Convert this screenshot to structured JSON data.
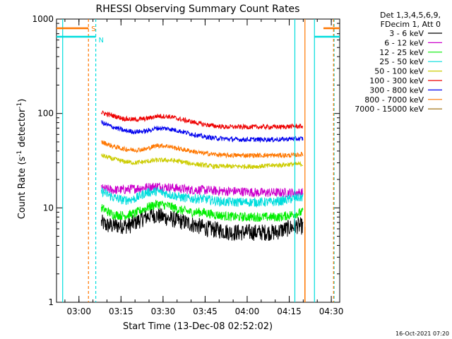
{
  "chart_data": {
    "type": "line",
    "title": "RHESSI Observing Summary Count Rates",
    "xlabel": "Start Time (13-Dec-08 02:52:02)",
    "ylabel_main": "Count Rate (s",
    "ylabel_sup1": "-1",
    "ylabel_mid": " detector",
    "ylabel_sup2": "-1",
    "ylabel_end": ")",
    "y_scale": "log",
    "ylim": [
      1,
      1000
    ],
    "xlim_minutes_after_0252": [
      0,
      101
    ],
    "y_ticks": [
      {
        "label": "1000",
        "value": 1000
      },
      {
        "label": "100",
        "value": 100
      },
      {
        "label": "10",
        "value": 10
      },
      {
        "label": "1",
        "value": 1
      }
    ],
    "x_ticks": [
      {
        "label": "03:00",
        "minutes": 8
      },
      {
        "label": "03:15",
        "minutes": 23
      },
      {
        "label": "03:30",
        "minutes": 38
      },
      {
        "label": "03:45",
        "minutes": 53
      },
      {
        "label": "04:00",
        "minutes": 68
      },
      {
        "label": "04:15",
        "minutes": 83
      },
      {
        "label": "04:30",
        "minutes": 98
      }
    ],
    "legend_header": [
      "Det 1,3,4,5,6,9,",
      "FDecim 1, Att 0"
    ],
    "series": [
      {
        "name": "3 - 6 keV",
        "color": "#000000",
        "x": [
          16,
          18,
          22,
          26,
          30,
          34,
          38,
          42,
          46,
          50,
          54,
          58,
          62,
          66,
          70,
          74,
          78,
          82,
          86,
          88
        ],
        "y": [
          7,
          6.5,
          6.5,
          6.5,
          7.5,
          8.5,
          8,
          7.5,
          7,
          6.5,
          6,
          5.8,
          5.5,
          5.5,
          5.5,
          5.5,
          5.5,
          6,
          6.5,
          6.3
        ]
      },
      {
        "name": "6 - 12 keV",
        "color": "#cc00cc",
        "x": [
          16,
          20,
          24,
          28,
          32,
          36,
          40,
          44,
          48,
          52,
          56,
          60,
          64,
          68,
          72,
          76,
          80,
          84,
          88
        ],
        "y": [
          16,
          15.5,
          15.5,
          16,
          16.5,
          17,
          16.5,
          16,
          15.5,
          15.5,
          15.2,
          15,
          15,
          14.8,
          14.5,
          14.5,
          14.5,
          14.5,
          14.5
        ]
      },
      {
        "name": "12 - 25 keV",
        "color": "#00ee00",
        "x": [
          16,
          20,
          24,
          28,
          32,
          36,
          40,
          44,
          48,
          52,
          56,
          60,
          64,
          68,
          72,
          76,
          80,
          84,
          88
        ],
        "y": [
          10,
          8.5,
          8.3,
          8.7,
          10,
          11,
          10.5,
          9.5,
          9,
          9,
          8.5,
          8.2,
          8,
          8,
          8,
          8,
          8,
          8.5,
          9
        ]
      },
      {
        "name": "25 - 50 keV",
        "color": "#00dddd",
        "x": [
          16,
          20,
          24,
          28,
          32,
          36,
          40,
          44,
          48,
          52,
          56,
          60,
          64,
          68,
          72,
          76,
          80,
          84,
          88
        ],
        "y": [
          15,
          13,
          12,
          12.5,
          14.5,
          15,
          14,
          13,
          12.5,
          12.5,
          12,
          11.5,
          11.5,
          11.5,
          11.5,
          11.5,
          11.8,
          12.5,
          13
        ]
      },
      {
        "name": "50 - 100 keV",
        "color": "#cccc00",
        "x": [
          16,
          20,
          24,
          28,
          32,
          36,
          40,
          44,
          48,
          52,
          56,
          60,
          64,
          68,
          72,
          76,
          80,
          84,
          88
        ],
        "y": [
          36,
          33,
          31,
          30,
          31,
          32,
          32,
          31,
          29.5,
          28.5,
          27.5,
          27.5,
          27.5,
          27.5,
          27.5,
          28,
          28.5,
          29,
          29
        ]
      },
      {
        "name": "100 - 300 keV",
        "color": "#ee0000",
        "x": [
          16,
          20,
          24,
          28,
          32,
          36,
          40,
          44,
          48,
          52,
          56,
          60,
          64,
          68,
          72,
          76,
          80,
          84,
          88
        ],
        "y": [
          102,
          95,
          88,
          86,
          88,
          94,
          93,
          87,
          82,
          77,
          74,
          72,
          72,
          72,
          72,
          72,
          72,
          73,
          73
        ]
      },
      {
        "name": "300 - 800 keV",
        "color": "#0000ee",
        "x": [
          16,
          20,
          24,
          28,
          32,
          36,
          40,
          44,
          48,
          52,
          56,
          60,
          64,
          68,
          72,
          76,
          80,
          84,
          88
        ],
        "y": [
          80,
          72,
          66,
          64,
          65,
          70,
          69,
          65,
          61,
          57,
          55,
          54,
          53,
          53,
          53,
          53,
          53,
          54,
          54
        ]
      },
      {
        "name": "800 - 7000 keV",
        "color": "#ff7700",
        "x": [
          16,
          20,
          24,
          28,
          32,
          36,
          40,
          44,
          48,
          52,
          56,
          60,
          64,
          68,
          72,
          76,
          80,
          84,
          88
        ],
        "y": [
          50,
          45,
          42,
          41,
          42,
          46,
          45,
          42,
          40,
          38,
          37,
          36,
          36,
          36,
          36,
          36,
          36,
          36,
          37
        ]
      },
      {
        "name": "7000 - 15000 keV",
        "color": "#996600",
        "x": [],
        "y": []
      }
    ],
    "markers": [
      {
        "label": "S",
        "color": "#ff7700",
        "level": 800
      },
      {
        "label": "N",
        "color": "#00dddd",
        "level": 650
      }
    ],
    "footer_timestamp": "16-Oct-2021 07:20"
  }
}
